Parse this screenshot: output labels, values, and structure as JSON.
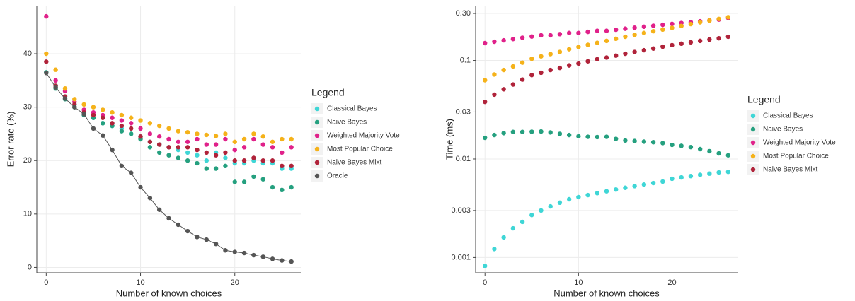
{
  "chart_data": [
    {
      "type": "scatter",
      "x_label": "Number of known choices",
      "y_label": "Error rate (%)",
      "legend_title": "Legend",
      "x": [
        0,
        1,
        2,
        3,
        4,
        5,
        6,
        7,
        8,
        9,
        10,
        11,
        12,
        13,
        14,
        15,
        16,
        17,
        18,
        19,
        20,
        21,
        22,
        23,
        24,
        25,
        26
      ],
      "xlim": [
        -1,
        27
      ],
      "xticks": [
        0,
        10,
        20
      ],
      "ylim": [
        -1,
        49
      ],
      "yticks": [
        0,
        10,
        20,
        30,
        40
      ],
      "grid": true,
      "log_y": false,
      "series": [
        {
          "name": "Classical Bayes",
          "color": "#3fd6d6",
          "values": [
            36.5,
            34,
            32,
            30.5,
            29,
            28,
            27,
            26.5,
            26,
            25,
            24.5,
            23.5,
            23,
            22.5,
            22,
            21.5,
            21,
            20,
            21.5,
            20.5,
            19.5,
            19.5,
            20,
            19.5,
            19.5,
            18.5,
            18.5
          ]
        },
        {
          "name": "Naive Bayes",
          "color": "#25a07f",
          "values": [
            36.5,
            33.5,
            31.5,
            30,
            28.5,
            28,
            27,
            26.5,
            25.5,
            25,
            24,
            22.5,
            21.5,
            21,
            20.5,
            20,
            19.5,
            18.5,
            18.5,
            19,
            16,
            16,
            17,
            16.5,
            15,
            14.5,
            15
          ]
        },
        {
          "name": "Weighted Majority Vote",
          "color": "#e0218a",
          "values": [
            47,
            35,
            33,
            31,
            29.5,
            29,
            28.5,
            28,
            27.5,
            27,
            26,
            25,
            24.5,
            24,
            23.5,
            23.5,
            24,
            23,
            23,
            24,
            22,
            22.5,
            24,
            23,
            22.5,
            21.5,
            22.5
          ]
        },
        {
          "name": "Most Popular Choice",
          "color": "#f5b21a",
          "values": [
            40,
            37,
            33.5,
            31.5,
            30.5,
            30,
            29.5,
            29,
            28.5,
            28,
            27.5,
            27,
            26.5,
            26,
            25.5,
            25.3,
            25,
            24.8,
            24.6,
            25,
            23.5,
            24,
            25,
            24.5,
            23.5,
            24,
            24
          ]
        },
        {
          "name": "Naive Bayes Mixt",
          "color": "#b0233a",
          "values": [
            38.5,
            34,
            32,
            30.5,
            29,
            28.5,
            28,
            27,
            26.5,
            26,
            24.5,
            23.5,
            23,
            22.5,
            22.5,
            22.5,
            22,
            21.5,
            21,
            21.5,
            20,
            20,
            20.5,
            20,
            20,
            19,
            19
          ]
        },
        {
          "name": "Oracle",
          "color": "#555555",
          "line": true,
          "values": [
            36.4,
            33.7,
            31.6,
            30,
            28.7,
            26,
            24.7,
            22,
            19,
            17.7,
            15,
            13,
            10.8,
            9.2,
            8,
            6.8,
            5.7,
            5.2,
            4.4,
            3.2,
            2.9,
            2.7,
            2.3,
            2,
            1.6,
            1.3,
            1.1
          ]
        }
      ]
    },
    {
      "type": "scatter",
      "x_label": "Number of known choices",
      "y_label": "Time (ms)",
      "legend_title": "Legend",
      "x": [
        0,
        1,
        2,
        3,
        4,
        5,
        6,
        7,
        8,
        9,
        10,
        11,
        12,
        13,
        14,
        15,
        16,
        17,
        18,
        19,
        20,
        21,
        22,
        23,
        24,
        25,
        26
      ],
      "xlim": [
        -1,
        27
      ],
      "xticks": [
        0,
        10,
        20
      ],
      "ylim": [
        0.0007,
        0.36
      ],
      "log_y": true,
      "grid": true,
      "yticks": [
        {
          "value": 0.3,
          "label": "0.30"
        },
        0.1,
        0.03,
        0.01,
        0.003,
        0.001
      ],
      "series": [
        {
          "name": "Classical Bayes",
          "color": "#3fd6d6",
          "values": [
            0.00082,
            0.00122,
            0.0016,
            0.00198,
            0.0023,
            0.0027,
            0.003,
            0.0033,
            0.0036,
            0.0039,
            0.0041,
            0.0043,
            0.0045,
            0.0047,
            0.0049,
            0.0051,
            0.0053,
            0.0055,
            0.0057,
            0.0059,
            0.0063,
            0.0065,
            0.0067,
            0.0069,
            0.0071,
            0.0073,
            0.0074
          ]
        },
        {
          "name": "Naive Bayes",
          "color": "#25a07f",
          "values": [
            0.0164,
            0.0175,
            0.0183,
            0.0188,
            0.0188,
            0.0189,
            0.019,
            0.0186,
            0.018,
            0.0175,
            0.017,
            0.0168,
            0.0167,
            0.0168,
            0.016,
            0.0154,
            0.0152,
            0.015,
            0.0148,
            0.0145,
            0.0139,
            0.0136,
            0.0132,
            0.0126,
            0.012,
            0.0114,
            0.0109
          ]
        },
        {
          "name": "Weighted Majority Vote",
          "color": "#e0218a",
          "values": [
            0.15,
            0.155,
            0.16,
            0.165,
            0.17,
            0.175,
            0.18,
            0.18,
            0.185,
            0.19,
            0.19,
            0.195,
            0.2,
            0.2,
            0.205,
            0.21,
            0.215,
            0.22,
            0.225,
            0.23,
            0.235,
            0.24,
            0.245,
            0.25,
            0.255,
            0.26,
            0.27
          ]
        },
        {
          "name": "Most Popular Choice",
          "color": "#f5b21a",
          "values": [
            0.063,
            0.072,
            0.08,
            0.087,
            0.095,
            0.104,
            0.11,
            0.116,
            0.122,
            0.13,
            0.137,
            0.144,
            0.151,
            0.158,
            0.166,
            0.174,
            0.182,
            0.19,
            0.198,
            0.206,
            0.214,
            0.224,
            0.234,
            0.244,
            0.254,
            0.264,
            0.275
          ]
        },
        {
          "name": "Naive Bayes Mixt",
          "color": "#b0233a",
          "values": [
            0.038,
            0.045,
            0.051,
            0.057,
            0.064,
            0.071,
            0.075,
            0.08,
            0.084,
            0.089,
            0.093,
            0.098,
            0.103,
            0.107,
            0.112,
            0.117,
            0.122,
            0.127,
            0.132,
            0.138,
            0.143,
            0.148,
            0.153,
            0.158,
            0.163,
            0.168,
            0.174
          ]
        }
      ]
    }
  ]
}
